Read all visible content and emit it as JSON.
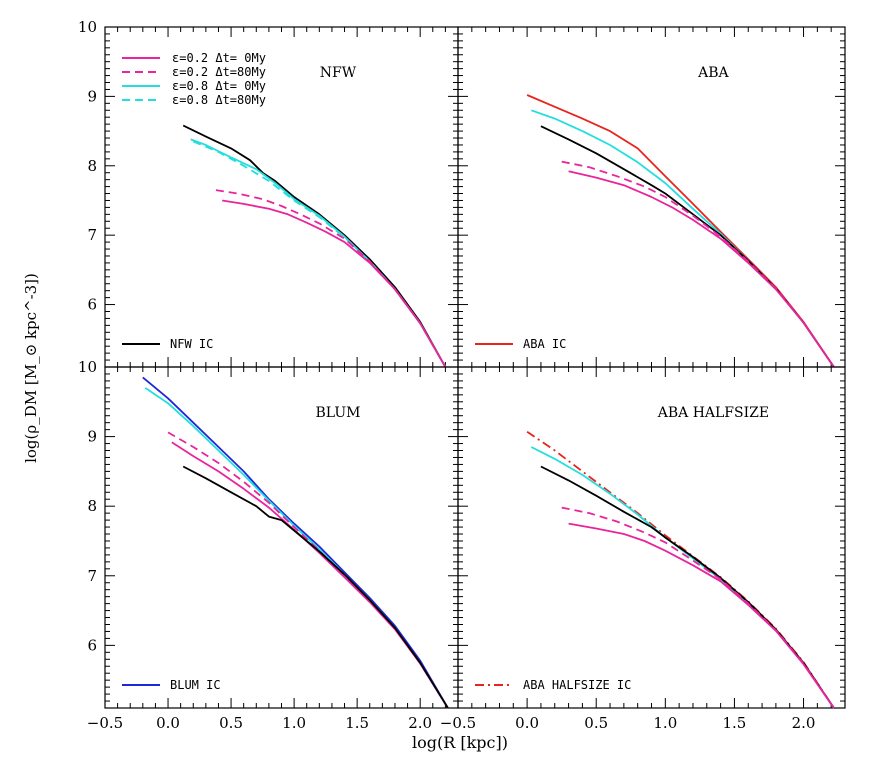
{
  "figure": {
    "xlabel": "log(R [kpc])",
    "ylabel": "log(ρ_DM [M_⊙ kpc^-3])"
  },
  "legend": {
    "items": [
      {
        "label": "ε=0.2 Δt= 0My",
        "color": "#e8259c",
        "dash": "solid"
      },
      {
        "label": "ε=0.2 Δt=80My",
        "color": "#e8259c",
        "dash": "dashed"
      },
      {
        "label": "ε=0.8 Δt= 0My",
        "color": "#22dede",
        "dash": "solid"
      },
      {
        "label": "ε=0.8 Δt=80My",
        "color": "#22dede",
        "dash": "dashed"
      }
    ]
  },
  "colors": {
    "magenta": "#e8259c",
    "cyan": "#22dede",
    "nfw_ic": "#000000",
    "aba_ic": "#e8241c",
    "blum_ic": "#1f28d8",
    "aba_halfsize_ic": "#e8241c"
  },
  "chart_data": [
    {
      "type": "line",
      "title": "NFW",
      "xlim": [
        -0.5,
        2.3
      ],
      "ylim": [
        5.1,
        10.0
      ],
      "x_ticks": [
        "−0.5",
        "0.0",
        "0.5",
        "1.0",
        "1.5",
        "2.0"
      ],
      "y_ticks": [
        "10",
        "9",
        "8",
        "7",
        "6"
      ],
      "ic_label": "NFW IC",
      "series": [
        {
          "name": "NFW IC",
          "color": "#000000",
          "dash": "solid",
          "x": [
            0.12,
            0.3,
            0.5,
            0.65,
            0.75,
            0.85,
            1.0,
            1.2,
            1.4,
            1.6,
            1.8,
            2.0,
            2.2
          ],
          "y": [
            8.58,
            8.42,
            8.25,
            8.08,
            7.9,
            7.78,
            7.55,
            7.3,
            7.0,
            6.65,
            6.25,
            5.75,
            5.1
          ]
        },
        {
          "name": "ε=0.8 Δt= 0My",
          "color": "#22dede",
          "dash": "solid",
          "x": [
            0.18,
            0.3,
            0.5,
            0.7,
            0.85,
            1.0,
            1.2,
            1.4,
            1.6,
            1.8,
            2.0,
            2.2
          ],
          "y": [
            8.38,
            8.3,
            8.12,
            7.95,
            7.75,
            7.52,
            7.28,
            6.98,
            6.62,
            6.22,
            5.73,
            5.1
          ]
        },
        {
          "name": "ε=0.8 Δt=80My",
          "color": "#22dede",
          "dash": "dashed",
          "x": [
            0.2,
            0.4,
            0.6,
            0.8,
            1.0,
            1.2,
            1.4,
            1.6,
            1.8,
            2.0,
            2.2
          ],
          "y": [
            8.35,
            8.2,
            8.0,
            7.78,
            7.5,
            7.26,
            6.97,
            6.62,
            6.22,
            5.73,
            5.1
          ]
        },
        {
          "name": "ε=0.2 Δt=80My",
          "color": "#e8259c",
          "dash": "dashed",
          "x": [
            0.38,
            0.55,
            0.75,
            0.9,
            1.05,
            1.2,
            1.4,
            1.6,
            1.8,
            2.0,
            2.2
          ],
          "y": [
            7.65,
            7.6,
            7.52,
            7.42,
            7.3,
            7.17,
            6.95,
            6.62,
            6.22,
            5.73,
            5.1
          ]
        },
        {
          "name": "ε=0.2 Δt= 0My",
          "color": "#e8259c",
          "dash": "solid",
          "x": [
            0.43,
            0.6,
            0.8,
            0.95,
            1.1,
            1.25,
            1.4,
            1.6,
            1.8,
            2.0,
            2.2
          ],
          "y": [
            7.5,
            7.45,
            7.38,
            7.3,
            7.18,
            7.05,
            6.9,
            6.6,
            6.22,
            5.73,
            5.1
          ]
        }
      ]
    },
    {
      "type": "line",
      "title": "ABA",
      "xlim": [
        -0.5,
        2.3
      ],
      "ylim": [
        5.1,
        10.0
      ],
      "x_ticks": [
        "−0.5",
        "0.0",
        "0.5",
        "1.0",
        "1.5",
        "2.0"
      ],
      "y_ticks": [],
      "ic_label": "ABA IC",
      "series": [
        {
          "name": "ABA IC",
          "color": "#e8241c",
          "dash": "solid",
          "x": [
            0.0,
            0.2,
            0.4,
            0.6,
            0.8,
            1.0,
            1.2,
            1.4,
            1.6,
            1.8,
            2.0,
            2.22
          ],
          "y": [
            9.02,
            8.85,
            8.68,
            8.5,
            8.25,
            7.85,
            7.45,
            7.05,
            6.65,
            6.25,
            5.75,
            5.1
          ]
        },
        {
          "name": "ε=0.8 Δt= 0My",
          "color": "#22dede",
          "dash": "solid",
          "x": [
            0.03,
            0.2,
            0.4,
            0.6,
            0.8,
            1.0,
            1.2,
            1.4,
            1.6,
            1.8,
            2.0,
            2.22
          ],
          "y": [
            8.8,
            8.68,
            8.5,
            8.3,
            8.05,
            7.75,
            7.38,
            7.02,
            6.63,
            6.23,
            5.74,
            5.1
          ]
        },
        {
          "name": "NFW IC",
          "color": "#000000",
          "dash": "solid",
          "x": [
            0.1,
            0.3,
            0.5,
            0.7,
            0.9,
            1.0,
            1.2,
            1.4,
            1.6,
            1.8,
            2.0,
            2.22
          ],
          "y": [
            8.57,
            8.38,
            8.18,
            7.95,
            7.72,
            7.6,
            7.3,
            7.0,
            6.63,
            6.23,
            5.74,
            5.1
          ]
        },
        {
          "name": "ε=0.2 Δt=80My",
          "color": "#e8259c",
          "dash": "dashed",
          "x": [
            0.25,
            0.45,
            0.65,
            0.85,
            1.0,
            1.2,
            1.4,
            1.6,
            1.8,
            2.0,
            2.22
          ],
          "y": [
            8.06,
            7.98,
            7.85,
            7.7,
            7.55,
            7.28,
            6.98,
            6.62,
            6.23,
            5.74,
            5.1
          ]
        },
        {
          "name": "ε=0.2 Δt= 0My",
          "color": "#e8259c",
          "dash": "solid",
          "x": [
            0.3,
            0.5,
            0.7,
            0.9,
            1.05,
            1.2,
            1.4,
            1.6,
            1.8,
            2.0,
            2.22
          ],
          "y": [
            7.92,
            7.83,
            7.72,
            7.55,
            7.4,
            7.22,
            6.95,
            6.6,
            6.22,
            5.74,
            5.1
          ]
        }
      ]
    },
    {
      "type": "line",
      "title": "BLUM",
      "xlim": [
        -0.5,
        2.3
      ],
      "ylim": [
        5.1,
        10.0
      ],
      "x_ticks": [
        "−0.5",
        "0.0",
        "0.5",
        "1.0",
        "1.5",
        "2.0"
      ],
      "y_ticks": [
        "10",
        "9",
        "8",
        "7",
        "6"
      ],
      "ic_label": "BLUM IC",
      "series": [
        {
          "name": "BLUM IC",
          "color": "#1f28d8",
          "dash": "solid",
          "x": [
            -0.2,
            0.0,
            0.2,
            0.4,
            0.6,
            0.8,
            1.0,
            1.2,
            1.4,
            1.6,
            1.8,
            2.0,
            2.22
          ],
          "y": [
            9.85,
            9.55,
            9.2,
            8.85,
            8.5,
            8.1,
            7.75,
            7.42,
            7.05,
            6.68,
            6.28,
            5.78,
            5.1
          ]
        },
        {
          "name": "ε=0.8 Δt= 0My",
          "color": "#22dede",
          "dash": "solid",
          "x": [
            -0.18,
            0.0,
            0.2,
            0.4,
            0.6,
            0.8,
            1.0,
            1.2,
            1.4,
            1.6,
            1.8,
            2.0,
            2.22
          ],
          "y": [
            9.7,
            9.48,
            9.15,
            8.8,
            8.45,
            8.08,
            7.72,
            7.38,
            7.02,
            6.65,
            6.25,
            5.74,
            5.1
          ]
        },
        {
          "name": "ε=0.2 Δt=80My",
          "color": "#e8259c",
          "dash": "dashed",
          "x": [
            0.0,
            0.2,
            0.4,
            0.6,
            0.8,
            1.0,
            1.2,
            1.4,
            1.6,
            1.8,
            2.0,
            2.22
          ],
          "y": [
            9.06,
            8.85,
            8.62,
            8.35,
            8.05,
            7.7,
            7.36,
            7.0,
            6.63,
            6.24,
            5.74,
            5.1
          ]
        },
        {
          "name": "ε=0.2 Δt= 0My",
          "color": "#e8259c",
          "dash": "solid",
          "x": [
            0.03,
            0.2,
            0.4,
            0.6,
            0.8,
            1.0,
            1.2,
            1.4,
            1.6,
            1.8,
            2.0,
            2.22
          ],
          "y": [
            8.92,
            8.72,
            8.5,
            8.25,
            7.98,
            7.66,
            7.33,
            6.98,
            6.62,
            6.23,
            5.74,
            5.1
          ]
        },
        {
          "name": "NFW IC",
          "color": "#000000",
          "dash": "solid",
          "x": [
            0.12,
            0.3,
            0.5,
            0.7,
            0.8,
            0.9,
            1.0,
            1.2,
            1.4,
            1.6,
            1.8,
            2.0,
            2.22
          ],
          "y": [
            8.57,
            8.4,
            8.2,
            8.0,
            7.85,
            7.8,
            7.65,
            7.35,
            7.02,
            6.65,
            6.25,
            5.75,
            5.1
          ]
        }
      ]
    },
    {
      "type": "line",
      "title": "ABA HALFSIZE",
      "xlim": [
        -0.5,
        2.3
      ],
      "ylim": [
        5.1,
        10.0
      ],
      "x_ticks": [
        "−0.5",
        "0.0",
        "0.5",
        "1.0",
        "1.5",
        "2.0"
      ],
      "y_ticks": [],
      "ic_label": "ABA HALFSIZE IC",
      "series": [
        {
          "name": "ABA HALFSIZE IC",
          "color": "#e8241c",
          "dash": "dashdot",
          "x": [
            0.0,
            0.2,
            0.4,
            0.6,
            0.8,
            1.0,
            1.2,
            1.4,
            1.6,
            1.8,
            2.0,
            2.22
          ],
          "y": [
            9.07,
            8.8,
            8.5,
            8.2,
            7.9,
            7.58,
            7.28,
            6.98,
            6.63,
            6.24,
            5.76,
            5.1
          ]
        },
        {
          "name": "ε=0.8 Δt= 0My",
          "color": "#22dede",
          "dash": "solid",
          "x": [
            0.03,
            0.2,
            0.4,
            0.6,
            0.8,
            1.0,
            1.2,
            1.4,
            1.6,
            1.8,
            2.0,
            2.22
          ],
          "y": [
            8.85,
            8.68,
            8.45,
            8.18,
            7.88,
            7.55,
            7.25,
            6.95,
            6.6,
            6.22,
            5.74,
            5.1
          ]
        },
        {
          "name": "NFW IC",
          "color": "#000000",
          "dash": "solid",
          "x": [
            0.1,
            0.3,
            0.5,
            0.7,
            0.9,
            1.0,
            1.2,
            1.4,
            1.6,
            1.8,
            2.0,
            2.22
          ],
          "y": [
            8.57,
            8.37,
            8.15,
            7.92,
            7.7,
            7.55,
            7.27,
            6.97,
            6.62,
            6.23,
            5.75,
            5.1
          ]
        },
        {
          "name": "ε=0.2 Δt=80My",
          "color": "#e8259c",
          "dash": "dashed",
          "x": [
            0.25,
            0.45,
            0.65,
            0.85,
            1.0,
            1.2,
            1.4,
            1.6,
            1.8,
            2.0,
            2.22
          ],
          "y": [
            7.98,
            7.9,
            7.78,
            7.62,
            7.48,
            7.22,
            6.95,
            6.6,
            6.22,
            5.74,
            5.1
          ]
        },
        {
          "name": "ε=0.2 Δt= 0My",
          "color": "#e8259c",
          "dash": "solid",
          "x": [
            0.3,
            0.5,
            0.7,
            0.85,
            1.0,
            1.2,
            1.4,
            1.6,
            1.8,
            2.0,
            2.22
          ],
          "y": [
            7.75,
            7.68,
            7.6,
            7.5,
            7.36,
            7.15,
            6.92,
            6.58,
            6.21,
            5.73,
            5.1
          ]
        }
      ]
    }
  ]
}
